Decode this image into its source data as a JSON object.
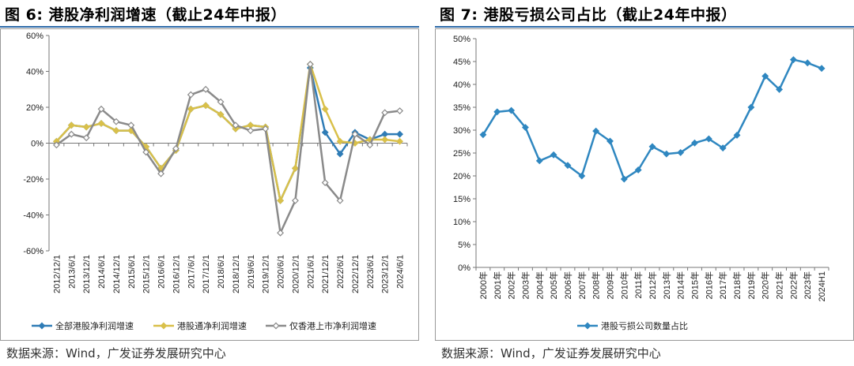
{
  "left": {
    "title": "图 6: 港股净利润增速（截止24年中报）",
    "source": "数据来源：Wind，广发证券发展研究中心",
    "colors": {
      "series1": "#2f7cb6",
      "series2": "#d9c04a",
      "series3": "#8a8a8a"
    }
  },
  "right": {
    "title": "图 7: 港股亏损公司占比（截止24年中报）",
    "source": "数据来源：Wind，广发证券发展研究中心",
    "colors": {
      "series1": "#2f87c0"
    }
  },
  "chart_data": [
    {
      "type": "line",
      "title": "港股净利润增速（截止24年中报）",
      "categories": [
        "2012/12/1",
        "2013/6/1",
        "2013/12/1",
        "2014/6/1",
        "2014/12/1",
        "2015/6/1",
        "2015/12/1",
        "2016/6/1",
        "2016/12/1",
        "2017/6/1",
        "2017/12/1",
        "2018/6/1",
        "2018/12/1",
        "2019/6/1",
        "2019/12/1",
        "2020/6/1",
        "2020/12/1",
        "2021/6/1",
        "2021/12/1",
        "2022/6/1",
        "2022/12/1",
        "2023/6/1",
        "2023/12/1",
        "2024/6/1"
      ],
      "series": [
        {
          "name": "全部港股净利润增速",
          "values": [
            1,
            10,
            9,
            11,
            7,
            7,
            -2,
            -14,
            -4,
            19,
            21,
            16,
            8,
            10,
            9,
            -32,
            -14,
            42,
            6,
            -6,
            6,
            2,
            5,
            5
          ]
        },
        {
          "name": "港股通净利润增速",
          "values": [
            1,
            10,
            9,
            11,
            7,
            7,
            -2,
            -14,
            -4,
            19,
            21,
            16,
            8,
            10,
            9,
            -32,
            -14,
            44,
            19,
            1,
            0,
            2,
            2,
            1
          ]
        },
        {
          "name": "仅香港上市净利润增速",
          "values": [
            -1,
            5,
            3,
            19,
            12,
            10,
            -5,
            -17,
            -3,
            27,
            30,
            23,
            10,
            7,
            8,
            -50,
            -32,
            44,
            -22,
            -32,
            5,
            -1,
            17,
            18
          ]
        }
      ],
      "ylim": [
        -60,
        60
      ],
      "yticks": [
        "60%",
        "40%",
        "20%",
        "0%",
        "-20%",
        "-40%",
        "-60%"
      ],
      "legend": "bottom"
    },
    {
      "type": "line",
      "title": "港股亏损公司占比（截止24年中报）",
      "categories": [
        "2000年",
        "2001年",
        "2002年",
        "2003年",
        "2004年",
        "2005年",
        "2006年",
        "2007年",
        "2008年",
        "2009年",
        "2010年",
        "2011年",
        "2012年",
        "2013年",
        "2014年",
        "2015年",
        "2016年",
        "2017年",
        "2018年",
        "2019年",
        "2020年",
        "2021年",
        "2022年",
        "2023年",
        "2024H1"
      ],
      "series": [
        {
          "name": "港股亏损公司数量占比",
          "values": [
            29.0,
            34.0,
            34.3,
            30.6,
            23.3,
            24.6,
            22.3,
            20.0,
            29.8,
            27.6,
            19.3,
            21.3,
            26.4,
            24.8,
            25.1,
            27.2,
            28.1,
            26.1,
            28.9,
            35.0,
            41.8,
            38.9,
            45.4,
            44.7,
            43.5
          ]
        }
      ],
      "ylim": [
        0,
        50
      ],
      "yticks": [
        "50%",
        "45%",
        "40%",
        "35%",
        "30%",
        "25%",
        "20%",
        "15%",
        "10%",
        "5%",
        "0%"
      ],
      "legend": "bottom"
    }
  ]
}
